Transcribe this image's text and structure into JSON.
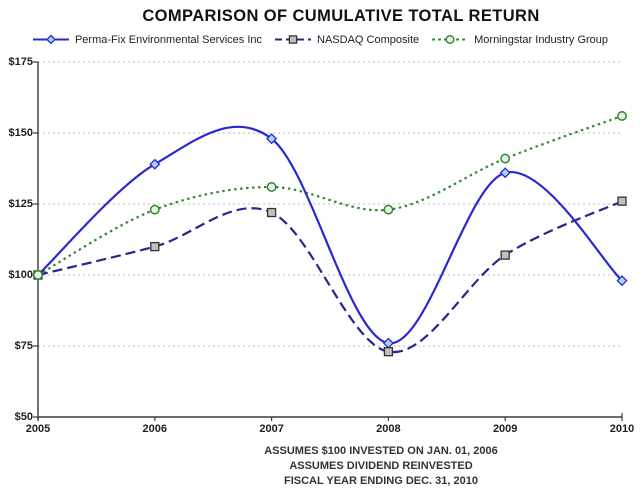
{
  "chart_data": {
    "type": "line",
    "title": "COMPARISON OF CUMULATIVE TOTAL RETURN",
    "categories": [
      "2005",
      "2006",
      "2007",
      "2008",
      "2009",
      "2010"
    ],
    "y_axis": {
      "min": 50,
      "max": 175,
      "ticks": [
        {
          "label": "$50",
          "value": 50
        },
        {
          "label": "$75",
          "value": 75
        },
        {
          "label": "$100",
          "value": 100
        },
        {
          "label": "$125",
          "value": 125
        },
        {
          "label": "$150",
          "value": 150
        },
        {
          "label": "$175",
          "value": 175
        }
      ]
    },
    "grid": "horizontal-dashed",
    "legend_position": "top",
    "series": [
      {
        "name": "Perma-Fix Environmental Services Inc",
        "values": [
          100,
          139,
          148,
          76,
          136,
          98
        ],
        "color": "#2828D2",
        "line_style": "solid",
        "marker": "diamond",
        "marker_fill": "#A9D6F5",
        "marker_stroke": "#2828D2"
      },
      {
        "name": "NASDAQ Composite",
        "values": [
          100,
          110,
          122,
          73,
          107,
          126
        ],
        "color": "#26268C",
        "line_style": "dashed",
        "marker": "square",
        "marker_fill": "#C0C0C0",
        "marker_stroke": "#333333"
      },
      {
        "name": "Morningstar Industry Group",
        "values": [
          100,
          123,
          131,
          123,
          141,
          156
        ],
        "color": "#2E8B2E",
        "line_style": "dotted",
        "marker": "circle",
        "marker_fill": "#E2F5E2",
        "marker_stroke": "#2E7D2E"
      }
    ],
    "footnotes": [
      "ASSUMES $100 INVESTED ON JAN. 01, 2006",
      "ASSUMES DIVIDEND REINVESTED",
      "FISCAL YEAR ENDING DEC. 31, 2010"
    ]
  },
  "colors": {
    "grid": "#BBBBBB",
    "axis": "#3A3A3A",
    "text": "#222222",
    "background": "#FFFFFF"
  }
}
